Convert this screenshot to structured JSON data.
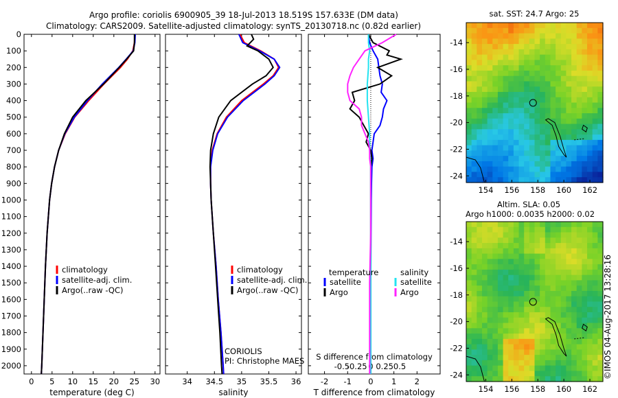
{
  "header": {
    "line1": "Argo profile: coriolis 6900905_39 18-Jul-2013 18.519S 157.633E (DM data)",
    "line2": "Climatology: CARS2009. Satellite-adjusted climatology: synTS_20130718.nc (0.82d earlier)"
  },
  "colors": {
    "climatology": "#ff0000",
    "satellite": "#0000ff",
    "argo": "#000000",
    "sat_salinity": "#22e3f0",
    "argo_salinity": "#ff22ff"
  },
  "chart_data": [
    {
      "type": "line",
      "xlabel": "temperature (deg C)",
      "ylim": [
        2050,
        0
      ],
      "xlim": [
        -1.8,
        31.2
      ],
      "xticks": [
        0,
        5,
        10,
        15,
        20,
        25,
        30
      ],
      "yticks": [
        0,
        100,
        200,
        300,
        400,
        500,
        600,
        700,
        800,
        900,
        1000,
        1100,
        1200,
        1300,
        1400,
        1500,
        1600,
        1700,
        1800,
        1900,
        2000
      ],
      "legend": [
        "climatology",
        "satellite-adj. clim.",
        "Argo(..raw -QC)"
      ],
      "series": [
        {
          "name": "climatology",
          "depth": [
            0,
            50,
            100,
            150,
            200,
            300,
            400,
            500,
            600,
            700,
            800,
            900,
            1000,
            1200,
            1400,
            1600,
            1800,
            2000,
            2050
          ],
          "values": [
            25.1,
            25.0,
            24.6,
            23.3,
            21.6,
            17.6,
            13.9,
            10.5,
            8.2,
            6.6,
            5.6,
            4.9,
            4.4,
            3.8,
            3.4,
            3.1,
            2.8,
            2.5,
            2.4
          ]
        },
        {
          "name": "satellite-adj. clim.",
          "depth": [
            0,
            50,
            100,
            150,
            200,
            300,
            400,
            500,
            600,
            700,
            800,
            900,
            1000,
            1200,
            1400,
            1600,
            1800,
            2000,
            2050
          ],
          "values": [
            25.2,
            25.1,
            24.7,
            23.0,
            21.2,
            17.2,
            13.6,
            10.4,
            8.1,
            6.6,
            5.6,
            4.9,
            4.4,
            3.8,
            3.4,
            3.1,
            2.8,
            2.5,
            2.4
          ]
        },
        {
          "name": "Argo(..raw -QC)",
          "depth": [
            0,
            50,
            100,
            150,
            200,
            300,
            400,
            500,
            600,
            700,
            800,
            900,
            1000,
            1200,
            1400,
            1600,
            1800,
            2000,
            2050
          ],
          "values": [
            25.0,
            25.0,
            24.8,
            23.1,
            21.3,
            17.5,
            13.2,
            10.0,
            8.0,
            6.6,
            5.6,
            4.9,
            4.4,
            3.8,
            3.4,
            3.1,
            2.8,
            2.5,
            2.4
          ]
        }
      ]
    },
    {
      "type": "line",
      "xlabel": "salinity",
      "ylim": [
        2050,
        0
      ],
      "xlim": [
        33.6,
        36.1
      ],
      "xticks": [
        34,
        34.5,
        35,
        35.5,
        36
      ],
      "legend": [
        "climatology",
        "satellite-adj. clim.",
        "Argo(..raw -QC)"
      ],
      "series": [
        {
          "name": "climatology",
          "depth": [
            0,
            50,
            100,
            150,
            200,
            250,
            300,
            400,
            500,
            600,
            700,
            800,
            900,
            1000,
            1200,
            1400,
            1600,
            1800,
            2000,
            2050
          ],
          "values": [
            34.97,
            35.05,
            35.35,
            35.6,
            35.68,
            35.58,
            35.4,
            35.0,
            34.72,
            34.55,
            34.46,
            34.43,
            34.43,
            34.44,
            34.48,
            34.53,
            34.57,
            34.62,
            34.66,
            34.67
          ]
        },
        {
          "name": "satellite-adj. clim.",
          "depth": [
            0,
            50,
            100,
            150,
            200,
            250,
            300,
            400,
            500,
            600,
            700,
            800,
            900,
            1000,
            1200,
            1400,
            1600,
            1800,
            2000,
            2050
          ],
          "values": [
            34.95,
            35.02,
            35.33,
            35.6,
            35.7,
            35.6,
            35.43,
            35.03,
            34.74,
            34.56,
            34.47,
            34.43,
            34.43,
            34.44,
            34.48,
            34.53,
            34.57,
            34.62,
            34.66,
            34.67
          ]
        },
        {
          "name": "Argo(..raw -QC)",
          "depth": [
            0,
            30,
            70,
            100,
            150,
            200,
            250,
            300,
            400,
            500,
            600,
            700,
            800,
            900,
            1000,
            1200,
            1400,
            1600,
            1800,
            2000,
            2050
          ],
          "values": [
            35.18,
            35.22,
            35.1,
            35.3,
            35.5,
            35.58,
            35.45,
            35.2,
            34.8,
            34.58,
            34.48,
            34.43,
            34.42,
            34.43,
            34.44,
            34.48,
            34.52,
            34.56,
            34.6,
            34.63,
            34.64
          ]
        }
      ],
      "annotation": [
        "CORIOLIS",
        "PI: Christophe MAES"
      ]
    },
    {
      "type": "line",
      "xlabel": "T difference from climatology",
      "xlabel_top": "S difference from climatology",
      "ylim": [
        2050,
        0
      ],
      "xlim": [
        -2.7,
        3.0
      ],
      "xticks": [
        -2,
        -1,
        0,
        1,
        2
      ],
      "xticks_top": [
        "-0.5",
        "-0.25",
        "0",
        "0.25",
        "0.5"
      ],
      "legend_groups": [
        {
          "title": "temperature",
          "items": [
            "satellite",
            "Argo"
          ]
        },
        {
          "title": "salinity",
          "items": [
            "satellite",
            "Argo"
          ]
        }
      ],
      "series": [
        {
          "name": "temperature satellite",
          "depth": [
            0,
            50,
            100,
            150,
            200,
            250,
            300,
            350,
            400,
            450,
            500,
            550,
            600,
            650,
            700,
            750,
            800,
            900,
            1000,
            1200,
            1500,
            1800,
            2000,
            2050
          ],
          "values": [
            -0.1,
            -0.05,
            0.1,
            0.3,
            0.35,
            0.4,
            0.5,
            0.45,
            0.7,
            0.55,
            0.5,
            0.4,
            0.15,
            0.1,
            0.05,
            0.1,
            0.05,
            0.03,
            0.02,
            0.01,
            0.0,
            0.0,
            0.0,
            0.0
          ]
        },
        {
          "name": "temperature Argo",
          "depth": [
            0,
            50,
            100,
            125,
            150,
            200,
            250,
            300,
            350,
            400,
            450,
            500,
            550,
            600,
            650,
            700,
            750,
            800,
            900,
            1000,
            1200,
            1500,
            1800,
            2000,
            2050
          ],
          "values": [
            -0.1,
            0.1,
            0.8,
            0.7,
            1.3,
            0.3,
            0.9,
            0.4,
            -0.8,
            -0.7,
            -0.9,
            -0.5,
            -0.3,
            -0.1,
            -0.2,
            0.0,
            0.05,
            0.0,
            0.0,
            0.0,
            0.0,
            0.0,
            0.0,
            0.0,
            0.0
          ]
        },
        {
          "name": "salinity satellite",
          "depth": [
            0,
            50,
            100,
            150,
            200,
            300,
            400,
            500,
            600,
            700,
            800,
            1000,
            1500,
            2000,
            2050
          ],
          "values": [
            -0.02,
            -0.02,
            -0.01,
            -0.02,
            -0.02,
            -0.03,
            -0.03,
            -0.02,
            -0.01,
            -0.01,
            0.0,
            0.0,
            0.0,
            0.0,
            0.0
          ]
        },
        {
          "name": "salinity Argo",
          "depth": [
            0,
            50,
            100,
            150,
            200,
            250,
            300,
            350,
            400,
            450,
            500,
            550,
            600,
            650,
            700,
            750,
            800,
            900,
            1000,
            1200,
            1500,
            1800,
            2000,
            2050
          ],
          "values": [
            0.22,
            0.1,
            -0.05,
            -0.1,
            -0.15,
            -0.18,
            -0.2,
            -0.2,
            -0.18,
            -0.1,
            -0.08,
            -0.08,
            -0.05,
            -0.02,
            -0.01,
            -0.01,
            0.0,
            0.0,
            0.0,
            0.0,
            -0.01,
            -0.01,
            -0.01,
            -0.01
          ]
        }
      ]
    },
    {
      "type": "heatmap",
      "title": "sat. SST: 24.7 Argo: 25",
      "xticks": [
        154,
        156,
        158,
        160,
        162
      ],
      "yticks": [
        -14,
        -16,
        -18,
        -20,
        -22,
        -24
      ],
      "xlim": [
        152.5,
        163
      ],
      "ylim": [
        -24.5,
        -12.5
      ],
      "marker": {
        "lon": 157.633,
        "lat": -18.519
      }
    },
    {
      "type": "heatmap",
      "title_line1": "Altim. SLA: 0.05",
      "title_line2": "Argo h1000: 0.0035 h2000: 0.02",
      "xticks": [
        154,
        156,
        158,
        160,
        162
      ],
      "yticks": [
        -14,
        -16,
        -18,
        -20,
        -22,
        -24
      ],
      "xlim": [
        152.5,
        163
      ],
      "ylim": [
        -24.5,
        -12.5
      ],
      "marker": {
        "lon": 157.633,
        "lat": -18.519
      }
    }
  ],
  "credit": "©IMOS 04-Aug-2017 13:28:16"
}
